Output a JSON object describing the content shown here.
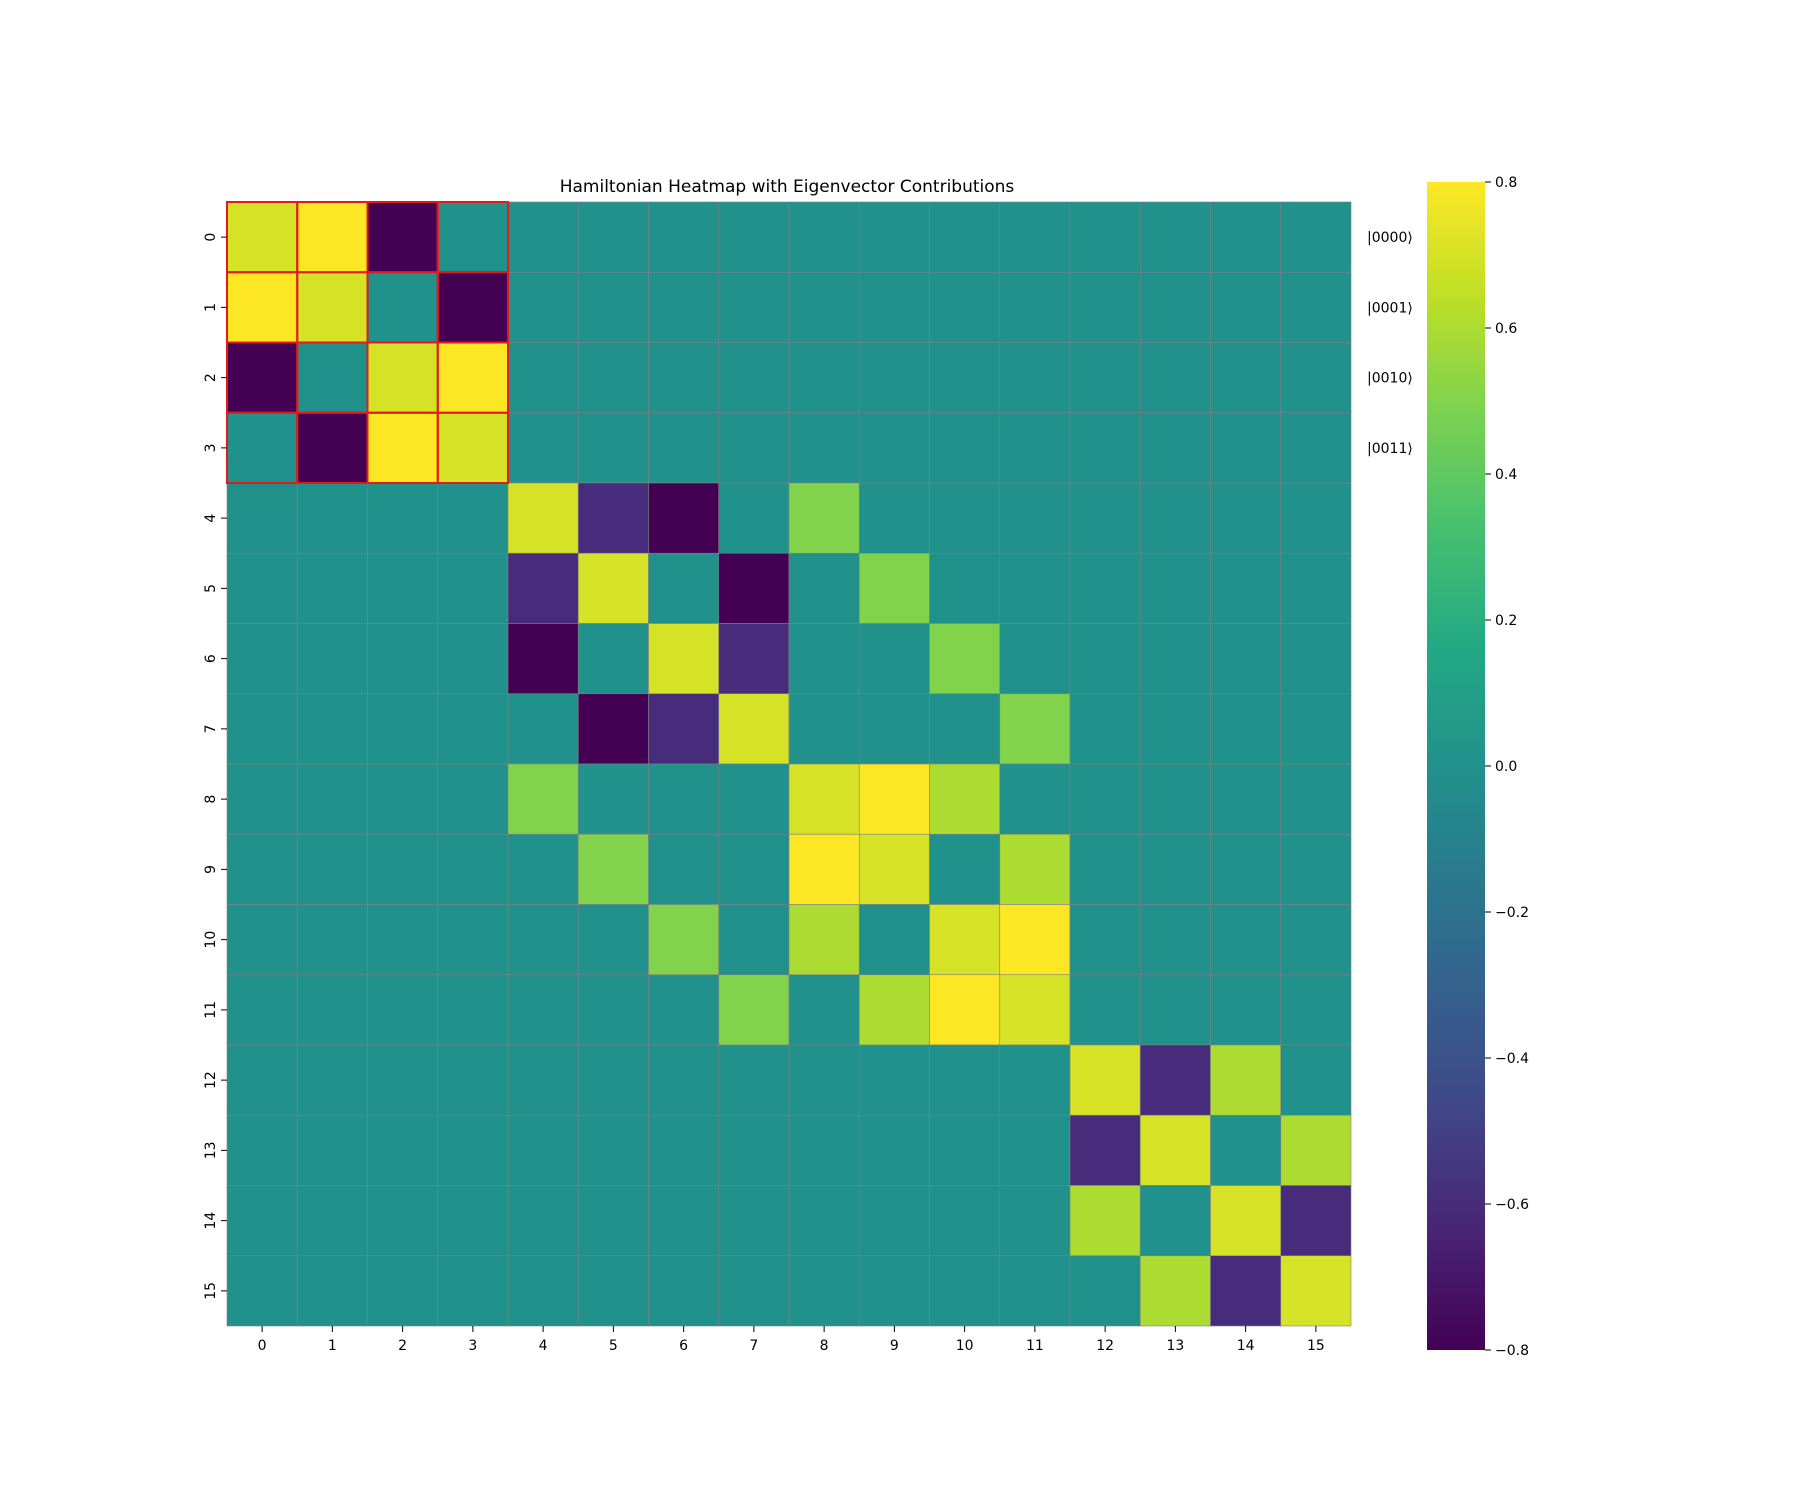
{
  "chart_data": {
    "type": "heatmap",
    "title": "Hamiltonian Heatmap with Eigenvector Contributions",
    "xlabel": "",
    "ylabel": "",
    "x_tick_labels": [
      "0",
      "1",
      "2",
      "3",
      "4",
      "5",
      "6",
      "7",
      "8",
      "9",
      "10",
      "11",
      "12",
      "13",
      "14",
      "15"
    ],
    "y_tick_labels": [
      "0",
      "1",
      "2",
      "3",
      "4",
      "5",
      "6",
      "7",
      "8",
      "9",
      "10",
      "11",
      "12",
      "13",
      "14",
      "15"
    ],
    "colormap": "viridis",
    "vmin": -0.8,
    "vmax": 0.8,
    "colorbar_ticks": [
      0.8,
      0.6,
      0.4,
      0.2,
      0.0,
      -0.2,
      -0.4,
      -0.6,
      -0.8
    ],
    "colorbar_tick_labels": [
      "0.8",
      "0.6",
      "0.4",
      "0.2",
      "0.0",
      "−0.2",
      "−0.4",
      "−0.6",
      "−0.8"
    ],
    "grid_color": "#808080",
    "highlight_color": "#e31a1c",
    "highlight_block": {
      "rows": [
        0,
        3
      ],
      "cols": [
        0,
        3
      ]
    },
    "state_labels": [
      "|0000⟩",
      "|0001⟩",
      "|0010⟩",
      "|0011⟩"
    ],
    "matrix": [
      [
        0.7,
        0.8,
        -0.8,
        0,
        0,
        0,
        0,
        0,
        0,
        0,
        0,
        0,
        0,
        0,
        0,
        0
      ],
      [
        0.8,
        0.7,
        0,
        -0.8,
        0,
        0,
        0,
        0,
        0,
        0,
        0,
        0,
        0,
        0,
        0,
        0
      ],
      [
        -0.8,
        0,
        0.7,
        0.8,
        0,
        0,
        0,
        0,
        0,
        0,
        0,
        0,
        0,
        0,
        0,
        0
      ],
      [
        0,
        -0.8,
        0.8,
        0.7,
        0,
        0,
        0,
        0,
        0,
        0,
        0,
        0,
        0,
        0,
        0,
        0
      ],
      [
        0,
        0,
        0,
        0,
        0.7,
        -0.6,
        -0.8,
        0,
        0.5,
        0,
        0,
        0,
        0,
        0,
        0,
        0
      ],
      [
        0,
        0,
        0,
        0,
        -0.6,
        0.7,
        0,
        -0.8,
        0,
        0.5,
        0,
        0,
        0,
        0,
        0,
        0
      ],
      [
        0,
        0,
        0,
        0,
        -0.8,
        0,
        0.7,
        -0.6,
        0,
        0,
        0.5,
        0,
        0,
        0,
        0,
        0
      ],
      [
        0,
        0,
        0,
        0,
        0,
        -0.8,
        -0.6,
        0.7,
        0,
        0,
        0,
        0.5,
        0,
        0,
        0,
        0
      ],
      [
        0,
        0,
        0,
        0,
        0.5,
        0,
        0,
        0,
        0.7,
        0.8,
        0.6,
        0,
        0,
        0,
        0,
        0
      ],
      [
        0,
        0,
        0,
        0,
        0,
        0.5,
        0,
        0,
        0.8,
        0.7,
        0,
        0.6,
        0,
        0,
        0,
        0
      ],
      [
        0,
        0,
        0,
        0,
        0,
        0,
        0.5,
        0,
        0.6,
        0,
        0.7,
        0.8,
        0,
        0,
        0,
        0
      ],
      [
        0,
        0,
        0,
        0,
        0,
        0,
        0,
        0.5,
        0,
        0.6,
        0.8,
        0.7,
        0,
        0,
        0,
        0
      ],
      [
        0,
        0,
        0,
        0,
        0,
        0,
        0,
        0,
        0,
        0,
        0,
        0,
        0.7,
        -0.6,
        0.6,
        0
      ],
      [
        0,
        0,
        0,
        0,
        0,
        0,
        0,
        0,
        0,
        0,
        0,
        0,
        -0.6,
        0.7,
        0,
        0.6
      ],
      [
        0,
        0,
        0,
        0,
        0,
        0,
        0,
        0,
        0,
        0,
        0,
        0,
        0.6,
        0,
        0.7,
        -0.6
      ],
      [
        0,
        0,
        0,
        0,
        0,
        0,
        0,
        0,
        0,
        0,
        0,
        0,
        0,
        0.6,
        -0.6,
        0.7
      ]
    ]
  }
}
